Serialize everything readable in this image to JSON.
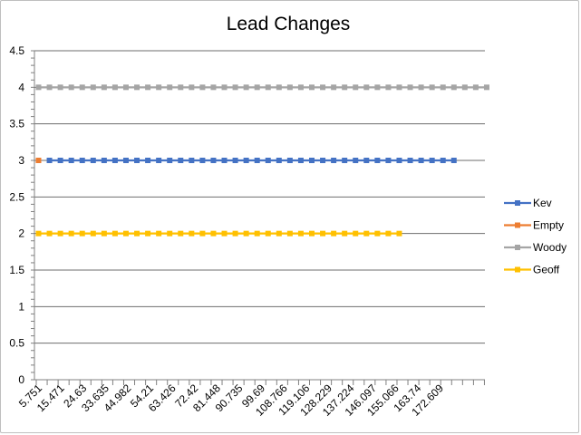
{
  "chart_data": {
    "type": "line",
    "title": "Lead Changes",
    "xlabel": "",
    "ylabel": "",
    "ylim": [
      0,
      4.5
    ],
    "y_ticks": [
      "0",
      "0.5",
      "1",
      "1.5",
      "2",
      "2.5",
      "3",
      "3.5",
      "4",
      "4.5"
    ],
    "x_tick_labels": [
      "5.751",
      "15.471",
      "24.63",
      "33.635",
      "44.982",
      "54.21",
      "63.426",
      "72.42",
      "81.448",
      "90.735",
      "99.69",
      "108.766",
      "119.106",
      "128.229",
      "137.224",
      "146.097",
      "155.066",
      "163.74",
      "172.609"
    ],
    "grid": true,
    "legend_position": "right",
    "series": [
      {
        "name": "Kev",
        "color": "#4472C4",
        "start_index": 1,
        "count": 38,
        "value": 3
      },
      {
        "name": "Empty",
        "color": "#ED7D31",
        "start_index": 0,
        "count": 1,
        "value": 3
      },
      {
        "name": "Woody",
        "color": "#A5A5A5",
        "start_index": 0,
        "count": 42,
        "value": 4
      },
      {
        "name": "Geoff",
        "color": "#FFC000",
        "start_index": 0,
        "count": 34,
        "value": 2
      }
    ]
  }
}
